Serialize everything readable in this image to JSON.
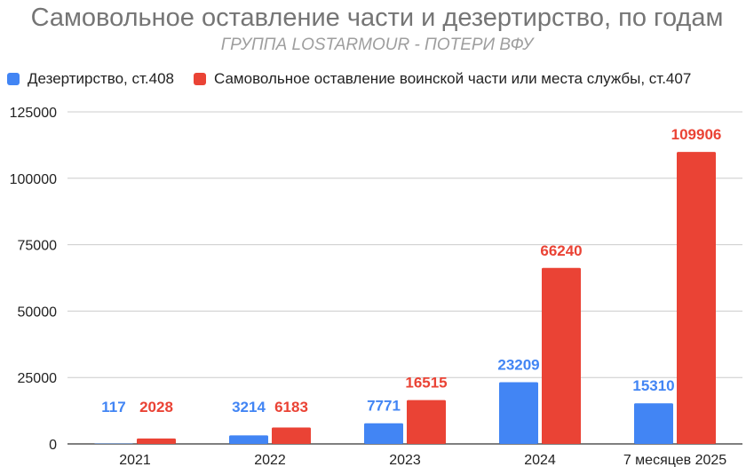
{
  "chart_data": {
    "type": "bar",
    "title": "Самовольное оставление части и дезертирство, по годам",
    "subtitle": "ГРУППА LOSTARMOUR - ПОТЕРИ ВФУ",
    "categories": [
      "2021",
      "2022",
      "2023",
      "2024",
      "7 месяцев 2025"
    ],
    "series": [
      {
        "name": "Дезертирство, ст.408",
        "color": "#4285f4",
        "values": [
          117,
          3214,
          7771,
          23209,
          15310
        ]
      },
      {
        "name": "Самовольное оставление воинской части или места службы, ст.407",
        "color": "#ea4335",
        "values": [
          2028,
          6183,
          16515,
          66240,
          109906
        ]
      }
    ],
    "y_ticks": [
      "0",
      "25000",
      "50000",
      "75000",
      "100000",
      "125000"
    ],
    "ylim": [
      0,
      125000
    ],
    "grid": true,
    "legend": "top-left",
    "xlabel": "",
    "ylabel": ""
  }
}
